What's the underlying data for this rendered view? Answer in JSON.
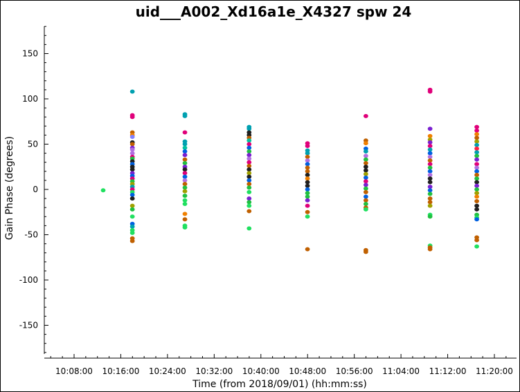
{
  "chart_data": {
    "type": "scatter",
    "title": "uid___A002_Xd16a1e_X4327 spw 24",
    "xlabel": "Time (from 2018/09/01) (hh:mm:ss)",
    "ylabel": "Gain Phase (degrees)",
    "ylim": [
      -180,
      180
    ],
    "xlim": [
      "10:03:50",
      "10:21:50"
    ],
    "x_ticks": [
      "10:08:00",
      "10:16:00",
      "10:24:00",
      "10:32:00",
      "10:40:00",
      "10:48:00",
      "10:56:00",
      "11:04:00",
      "11:12:00",
      "11:20:00"
    ],
    "y_ticks": [
      150,
      100,
      50,
      0,
      -50,
      -100,
      -150
    ],
    "grid": false,
    "colors": [
      "#00a0b0",
      "#e0007a",
      "#c06000",
      "#f08000",
      "#20c040",
      "#202020",
      "#7a20d0",
      "#b070e0",
      "#0060e0",
      "#a0a000",
      "#ff2040",
      "#909090",
      "#00c0a0",
      "#8080ff"
    ],
    "columns": [
      {
        "time": "10:12:59",
        "points": [
          [
            -1,
            "#20e060"
          ]
        ]
      },
      {
        "time": "10:17:59",
        "points": [
          [
            108,
            "#00a0b0"
          ],
          [
            82,
            "#e0007a"
          ],
          [
            80,
            "#e0007a"
          ],
          [
            63,
            "#c06000"
          ],
          [
            60,
            "#f08000"
          ],
          [
            58,
            "#8080ff"
          ],
          [
            52,
            "#202020"
          ],
          [
            50,
            "#c06000"
          ],
          [
            46,
            "#7a20d0"
          ],
          [
            44,
            "#b070e0"
          ],
          [
            40,
            "#b070e0"
          ],
          [
            36,
            "#e0007a"
          ],
          [
            34,
            "#20c040"
          ],
          [
            31,
            "#202020"
          ],
          [
            28,
            "#0060e0"
          ],
          [
            25,
            "#202020"
          ],
          [
            22,
            "#202020"
          ],
          [
            18,
            "#7a20d0"
          ],
          [
            15,
            "#0060e0"
          ],
          [
            12,
            "#e0007a"
          ],
          [
            9,
            "#20c040"
          ],
          [
            6,
            "#a0a000"
          ],
          [
            3,
            "#00a0b0"
          ],
          [
            0,
            "#e0007a"
          ],
          [
            -3,
            "#20e060"
          ],
          [
            -6,
            "#0060e0"
          ],
          [
            -10,
            "#202020"
          ],
          [
            -18,
            "#a0a000"
          ],
          [
            -22,
            "#20c040"
          ],
          [
            -30,
            "#20e060"
          ],
          [
            -38,
            "#0060e0"
          ],
          [
            -41,
            "#00a0b0"
          ],
          [
            -45,
            "#20e060"
          ],
          [
            -48,
            "#20e060"
          ],
          [
            -54,
            "#c06000"
          ],
          [
            -57,
            "#c06000"
          ]
        ]
      },
      {
        "time": "10:26:59",
        "points": [
          [
            83,
            "#00a0b0"
          ],
          [
            81,
            "#00a0b0"
          ],
          [
            63,
            "#e0007a"
          ],
          [
            53,
            "#00a0b0"
          ],
          [
            50,
            "#00a0b0"
          ],
          [
            46,
            "#00c0a0"
          ],
          [
            42,
            "#0060e0"
          ],
          [
            38,
            "#7a20d0"
          ],
          [
            33,
            "#c06000"
          ],
          [
            29,
            "#20c040"
          ],
          [
            25,
            "#7a20d0"
          ],
          [
            22,
            "#202020"
          ],
          [
            18,
            "#e0007a"
          ],
          [
            14,
            "#0060e0"
          ],
          [
            10,
            "#b070e0"
          ],
          [
            6,
            "#c06000"
          ],
          [
            2,
            "#20c040"
          ],
          [
            -2,
            "#a0a000"
          ],
          [
            -7,
            "#20c040"
          ],
          [
            -12,
            "#20e060"
          ],
          [
            -16,
            "#20e060"
          ],
          [
            -27,
            "#f08000"
          ],
          [
            -33,
            "#c06000"
          ],
          [
            -40,
            "#20e060"
          ],
          [
            -42,
            "#20e060"
          ]
        ]
      },
      {
        "time": "10:37:59",
        "points": [
          [
            69,
            "#00a0b0"
          ],
          [
            67,
            "#00a0b0"
          ],
          [
            63,
            "#202020"
          ],
          [
            60,
            "#202020"
          ],
          [
            57,
            "#c06000"
          ],
          [
            54,
            "#00c0a0"
          ],
          [
            50,
            "#e0007a"
          ],
          [
            46,
            "#0060e0"
          ],
          [
            42,
            "#20c040"
          ],
          [
            38,
            "#7a20d0"
          ],
          [
            34,
            "#b070e0"
          ],
          [
            30,
            "#e0007a"
          ],
          [
            26,
            "#c06000"
          ],
          [
            22,
            "#202020"
          ],
          [
            18,
            "#a0a000"
          ],
          [
            14,
            "#202020"
          ],
          [
            10,
            "#0060e0"
          ],
          [
            6,
            "#c06000"
          ],
          [
            2,
            "#20c040"
          ],
          [
            -3,
            "#20e060"
          ],
          [
            -10,
            "#7a20d0"
          ],
          [
            -14,
            "#20c040"
          ],
          [
            -18,
            "#20e060"
          ],
          [
            -24,
            "#c06000"
          ],
          [
            -43,
            "#20e060"
          ]
        ]
      },
      {
        "time": "10:47:59",
        "points": [
          [
            51,
            "#e0007a"
          ],
          [
            48,
            "#e0007a"
          ],
          [
            43,
            "#00a0b0"
          ],
          [
            40,
            "#00a0b0"
          ],
          [
            36,
            "#c06000"
          ],
          [
            32,
            "#b070e0"
          ],
          [
            28,
            "#0060e0"
          ],
          [
            24,
            "#c06000"
          ],
          [
            20,
            "#c06000"
          ],
          [
            16,
            "#202020"
          ],
          [
            12,
            "#f08000"
          ],
          [
            8,
            "#202020"
          ],
          [
            4,
            "#202020"
          ],
          [
            0,
            "#0060e0"
          ],
          [
            -4,
            "#20c040"
          ],
          [
            -8,
            "#20c040"
          ],
          [
            -12,
            "#7a20d0"
          ],
          [
            -18,
            "#e0007a"
          ],
          [
            -25,
            "#c06000"
          ],
          [
            -30,
            "#20e060"
          ],
          [
            -66,
            "#c06000"
          ]
        ]
      },
      {
        "time": "10:57:59",
        "points": [
          [
            81,
            "#e0007a"
          ],
          [
            54,
            "#c06000"
          ],
          [
            51,
            "#f08000"
          ],
          [
            45,
            "#0060e0"
          ],
          [
            42,
            "#00a0b0"
          ],
          [
            37,
            "#b070e0"
          ],
          [
            33,
            "#20c040"
          ],
          [
            29,
            "#c06000"
          ],
          [
            25,
            "#202020"
          ],
          [
            21,
            "#202020"
          ],
          [
            17,
            "#a0a000"
          ],
          [
            13,
            "#0060e0"
          ],
          [
            9,
            "#e0007a"
          ],
          [
            5,
            "#7a20d0"
          ],
          [
            1,
            "#20c040"
          ],
          [
            -3,
            "#c06000"
          ],
          [
            -8,
            "#0060e0"
          ],
          [
            -12,
            "#c06000"
          ],
          [
            -16,
            "#20c040"
          ],
          [
            -20,
            "#c06000"
          ],
          [
            -22,
            "#20e060"
          ],
          [
            -67,
            "#c06000"
          ],
          [
            -69,
            "#c06000"
          ]
        ]
      },
      {
        "time": "11:08:59",
        "points": [
          [
            110,
            "#e0007a"
          ],
          [
            108,
            "#e0007a"
          ],
          [
            67,
            "#7a20d0"
          ],
          [
            59,
            "#f08000"
          ],
          [
            55,
            "#a0a000"
          ],
          [
            52,
            "#7a20d0"
          ],
          [
            48,
            "#e0007a"
          ],
          [
            44,
            "#00a0b0"
          ],
          [
            40,
            "#0060e0"
          ],
          [
            36,
            "#b070e0"
          ],
          [
            32,
            "#c06000"
          ],
          [
            28,
            "#e0007a"
          ],
          [
            24,
            "#20c040"
          ],
          [
            20,
            "#0060e0"
          ],
          [
            16,
            "#b070e0"
          ],
          [
            12,
            "#202020"
          ],
          [
            8,
            "#202020"
          ],
          [
            3,
            "#7a20d0"
          ],
          [
            -1,
            "#0060e0"
          ],
          [
            -5,
            "#20c040"
          ],
          [
            -10,
            "#c06000"
          ],
          [
            -14,
            "#c06000"
          ],
          [
            -18,
            "#a0a000"
          ],
          [
            -28,
            "#20e060"
          ],
          [
            -30,
            "#20c040"
          ],
          [
            -62,
            "#20e060"
          ],
          [
            -64,
            "#c06000"
          ],
          [
            -66,
            "#c06000"
          ]
        ]
      },
      {
        "time": "11:16:59",
        "points": [
          [
            69,
            "#e0007a"
          ],
          [
            65,
            "#e0007a"
          ],
          [
            61,
            "#f08000"
          ],
          [
            57,
            "#c06000"
          ],
          [
            53,
            "#a0a000"
          ],
          [
            49,
            "#00a0b0"
          ],
          [
            45,
            "#ff2040"
          ],
          [
            41,
            "#00a0b0"
          ],
          [
            37,
            "#20c040"
          ],
          [
            33,
            "#7a20d0"
          ],
          [
            28,
            "#e0007a"
          ],
          [
            24,
            "#b070e0"
          ],
          [
            20,
            "#0060e0"
          ],
          [
            16,
            "#c06000"
          ],
          [
            12,
            "#20c040"
          ],
          [
            8,
            "#202020"
          ],
          [
            4,
            "#7a20d0"
          ],
          [
            0,
            "#20c040"
          ],
          [
            -4,
            "#a0a000"
          ],
          [
            -8,
            "#f08000"
          ],
          [
            -13,
            "#c06000"
          ],
          [
            -18,
            "#202020"
          ],
          [
            -22,
            "#202020"
          ],
          [
            -28,
            "#20c040"
          ],
          [
            -31,
            "#20e060"
          ],
          [
            -33,
            "#0060e0"
          ],
          [
            -53,
            "#c06000"
          ],
          [
            -56,
            "#c06000"
          ],
          [
            -63,
            "#20e060"
          ]
        ]
      }
    ]
  }
}
